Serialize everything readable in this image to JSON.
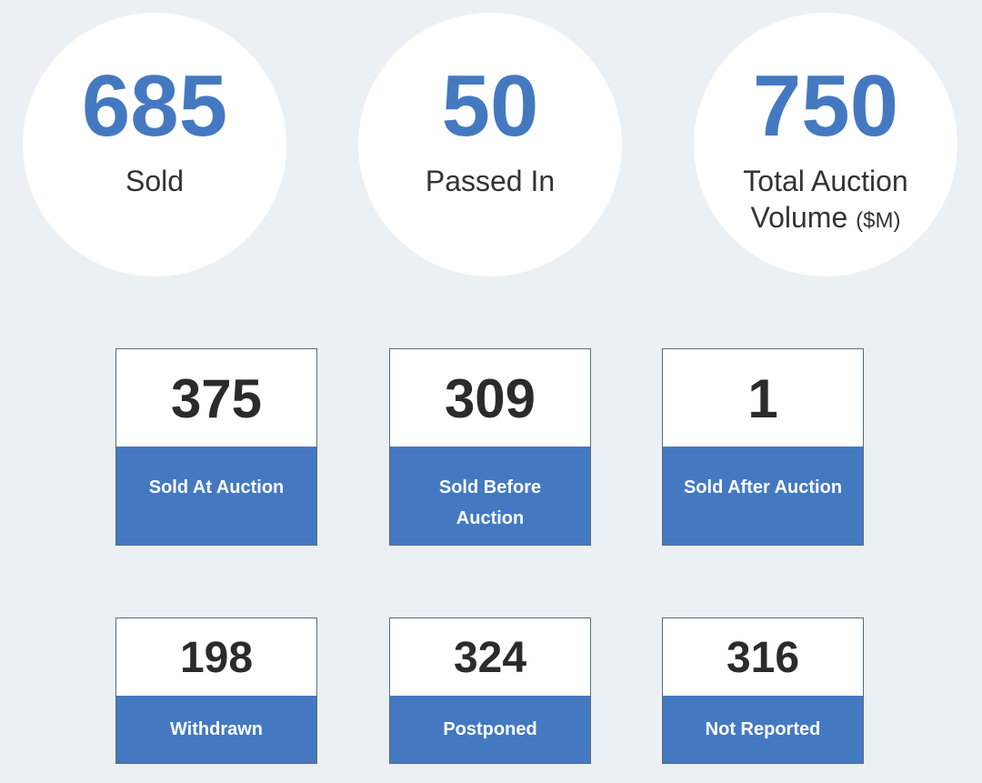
{
  "summary": {
    "sold": {
      "value": "685",
      "label": "Sold"
    },
    "passed_in": {
      "value": "50",
      "label": "Passed In"
    },
    "volume": {
      "value": "750",
      "label": "Total Auction Volume",
      "unit": "($M)"
    }
  },
  "tiles": [
    {
      "value": "375",
      "label": "Sold At Auction"
    },
    {
      "value": "309",
      "label": "Sold Before Auction"
    },
    {
      "value": "1",
      "label": "Sold After Auction"
    },
    {
      "value": "198",
      "label": "Withdrawn"
    },
    {
      "value": "324",
      "label": "Postponed"
    },
    {
      "value": "316",
      "label": "Not Reported"
    }
  ],
  "colors": {
    "accent": "#4479c2",
    "background": "#ebf0f4",
    "number_text": "#2b2b2b"
  }
}
